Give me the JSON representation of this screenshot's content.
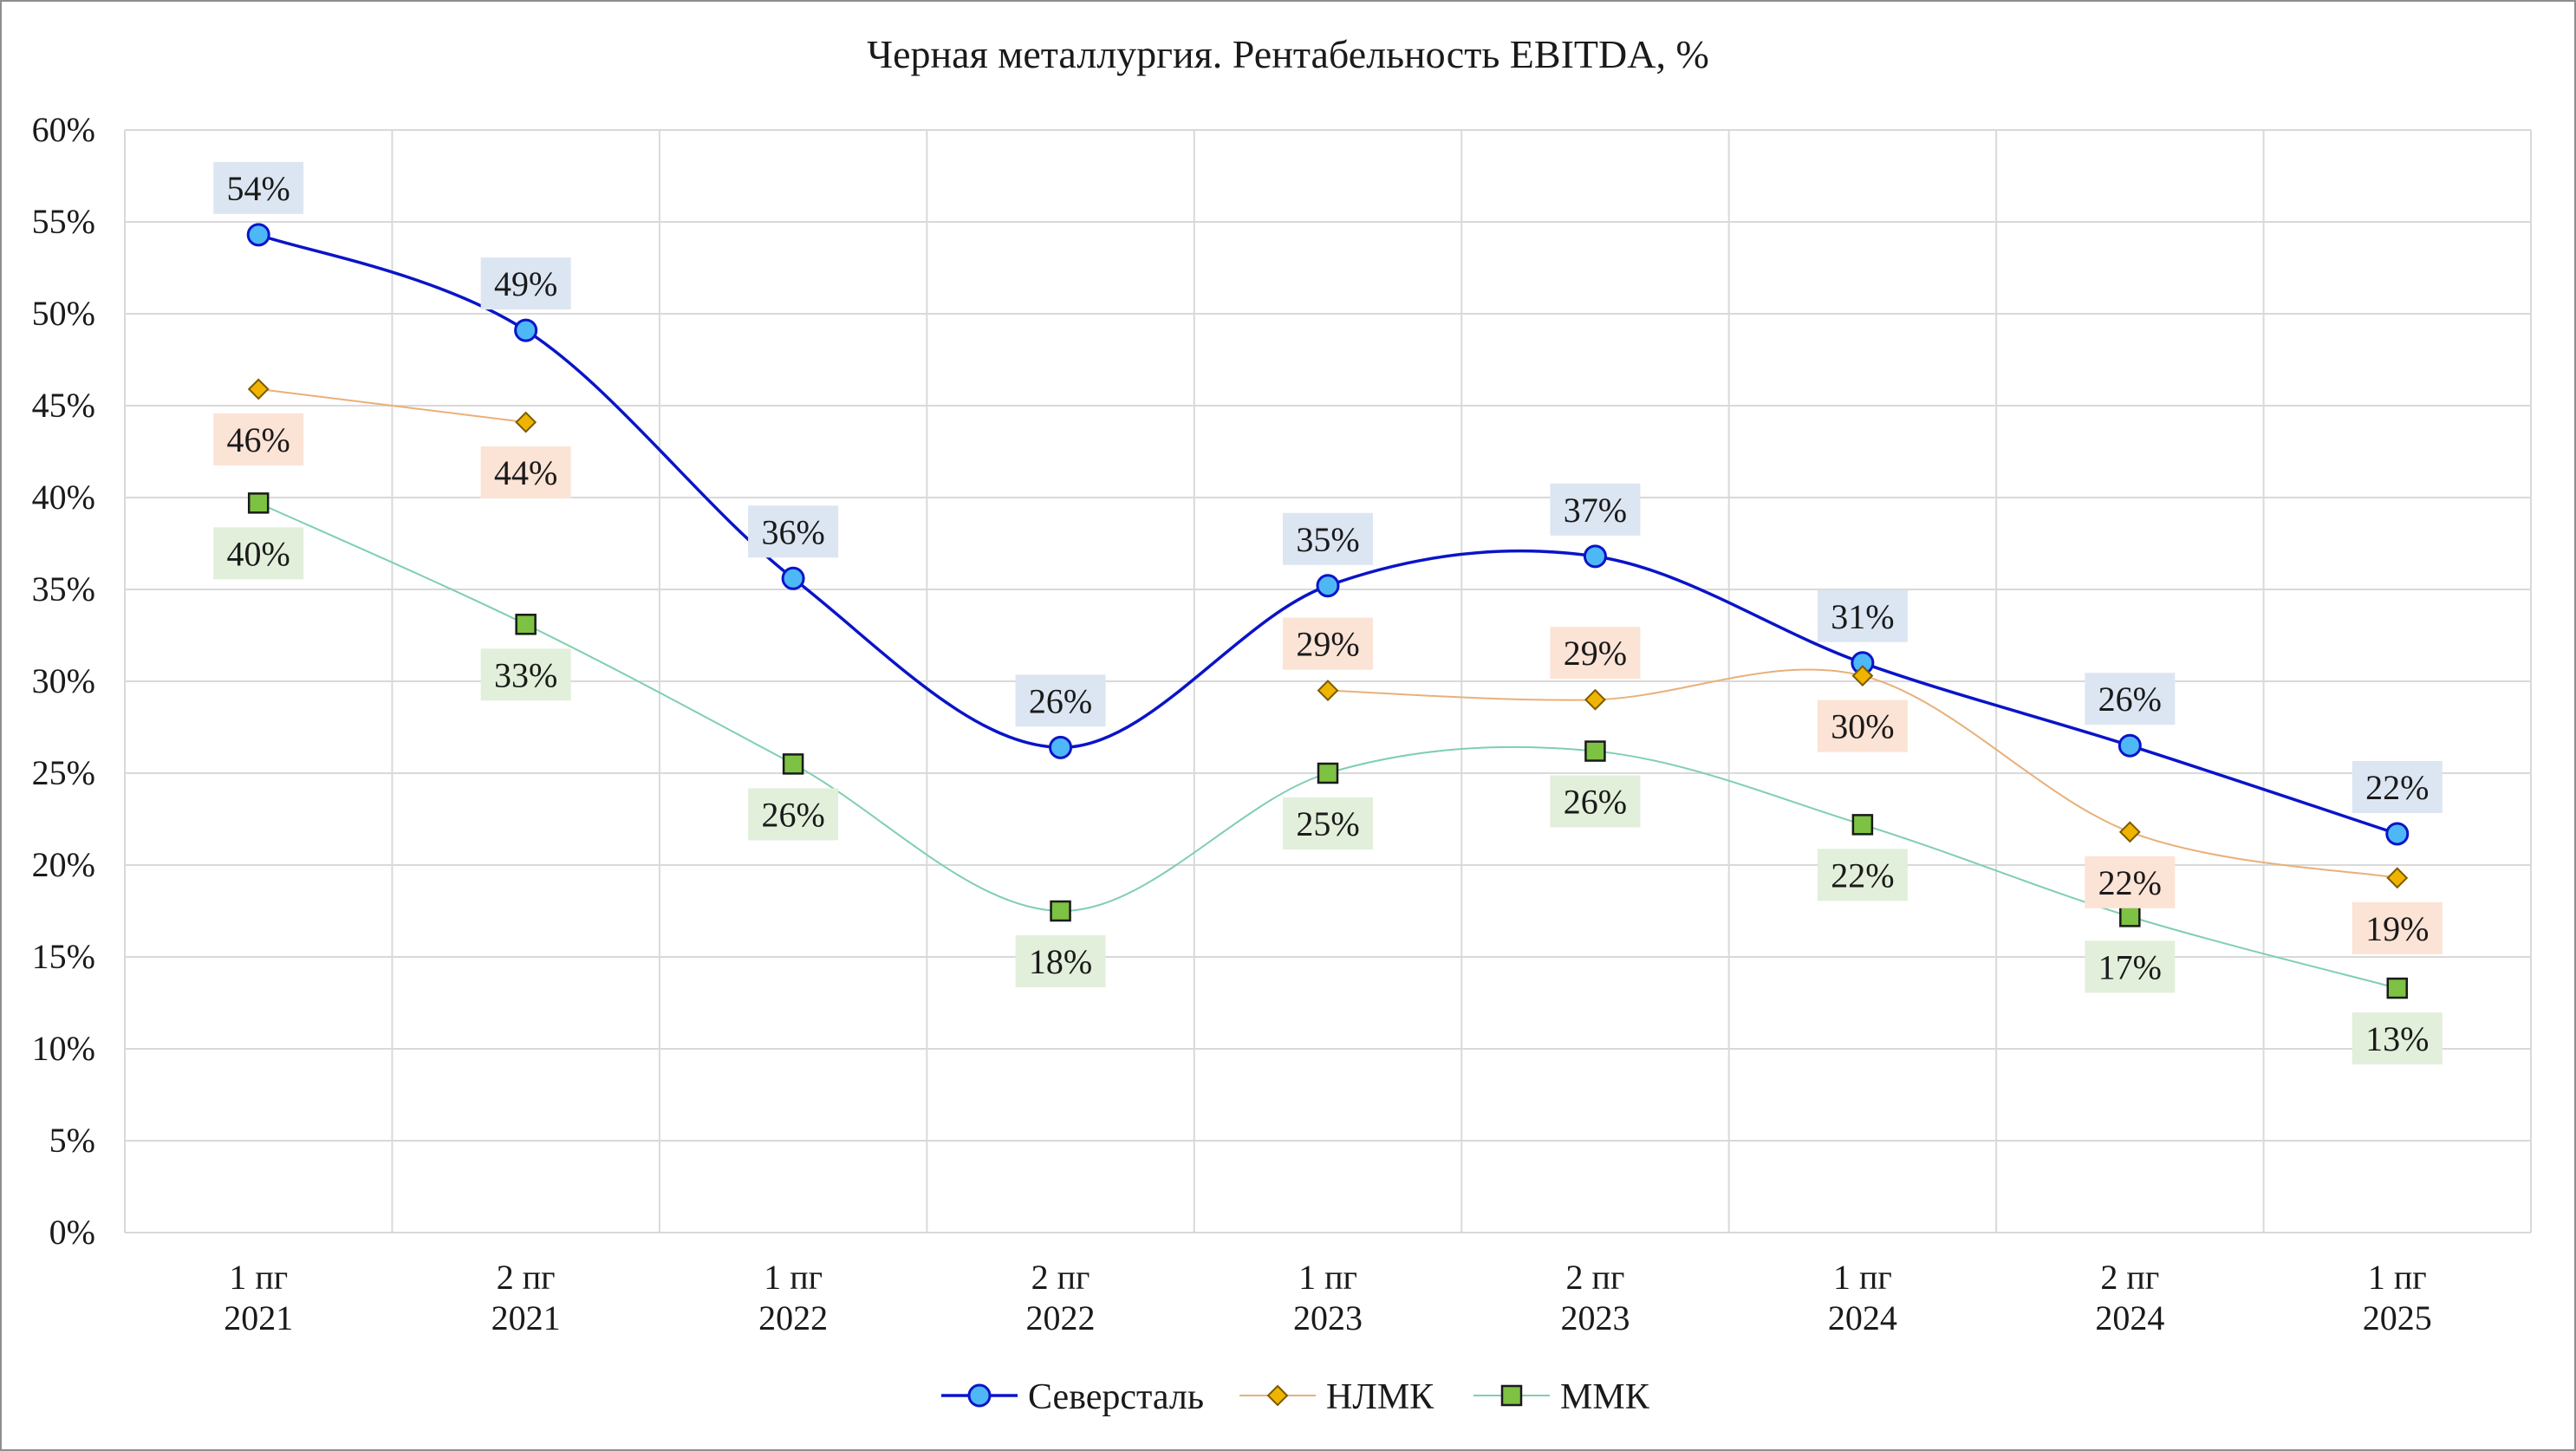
{
  "chart_data": {
    "type": "line",
    "title": "Черная металлургия. Рентабельность EBITDA, %",
    "xlabel": "",
    "ylabel": "",
    "ylim": [
      0,
      60
    ],
    "y_ticks": [
      "0%",
      "5%",
      "10%",
      "15%",
      "20%",
      "25%",
      "30%",
      "35%",
      "40%",
      "45%",
      "50%",
      "55%",
      "60%"
    ],
    "categories": [
      [
        "1 пг",
        "2021"
      ],
      [
        "2 пг",
        "2021"
      ],
      [
        "1 пг",
        "2022"
      ],
      [
        "2 пг",
        "2022"
      ],
      [
        "1 пг",
        "2023"
      ],
      [
        "2 пг",
        "2023"
      ],
      [
        "1 пг",
        "2024"
      ],
      [
        "2 пг",
        "2024"
      ],
      [
        "1 пг",
        "2025"
      ]
    ],
    "grid": true,
    "legend_position": "bottom",
    "smooth": true,
    "series": [
      {
        "name": "Северсталь",
        "marker": "circle",
        "color": "#0a14c8",
        "marker_color": "#4db8f5",
        "label_bg": "#dce6f2",
        "label_position": "above",
        "values": [
          54.3,
          49.1,
          35.6,
          26.4,
          35.2,
          36.8,
          31.0,
          26.5,
          21.7
        ],
        "labels": [
          "54%",
          "49%",
          "36%",
          "26%",
          "35%",
          "37%",
          "31%",
          "26%",
          "22%"
        ]
      },
      {
        "name": "НЛМК",
        "marker": "diamond",
        "color": "#e8b07a",
        "marker_color": "#f0b400",
        "label_bg": "#fbe3d6",
        "label_position": "mixed",
        "values": [
          45.9,
          44.1,
          null,
          null,
          29.5,
          29.0,
          30.3,
          21.8,
          19.3
        ],
        "labels": [
          "46%",
          "44%",
          "",
          "",
          "29%",
          "29%",
          "30%",
          "22%",
          "19%"
        ]
      },
      {
        "name": "ММК",
        "marker": "square",
        "color": "#7fcfae",
        "marker_color": "#7dc242",
        "label_bg": "#e2efda",
        "label_position": "below",
        "values": [
          39.7,
          33.1,
          25.5,
          17.5,
          25.0,
          26.2,
          22.2,
          17.2,
          13.3
        ],
        "labels": [
          "40%",
          "33%",
          "26%",
          "18%",
          "25%",
          "26%",
          "22%",
          "17%",
          "13%"
        ]
      }
    ]
  }
}
